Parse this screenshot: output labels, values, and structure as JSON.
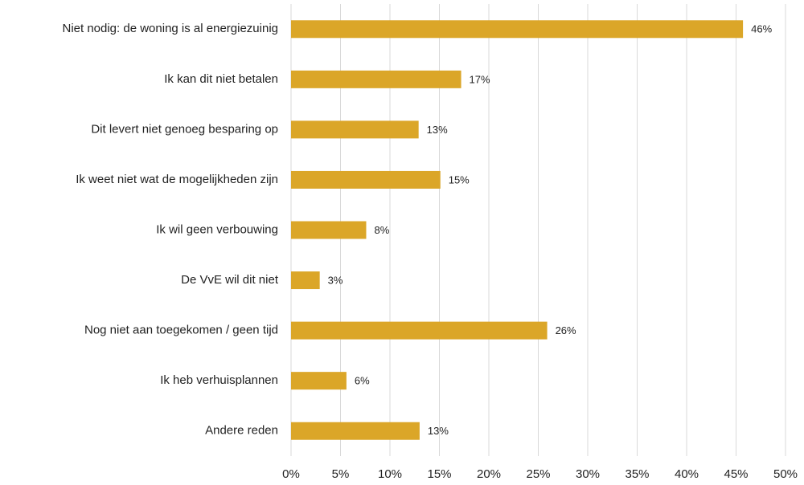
{
  "chart_data": {
    "type": "bar",
    "orientation": "horizontal",
    "categories": [
      "Niet nodig: de woning is al energiezuinig",
      "Ik kan dit niet betalen",
      "Dit levert niet genoeg besparing op",
      "Ik weet niet wat de mogelijkheden zijn",
      "Ik wil geen verbouwing",
      "De VvE wil dit niet",
      "Nog niet aan toegekomen / geen tijd",
      "Ik heb verhuisplannen",
      "Andere reden"
    ],
    "values": [
      45.7,
      17.2,
      12.9,
      15.1,
      7.6,
      2.9,
      25.9,
      5.6,
      13.0
    ],
    "value_labels": [
      "46%",
      "17%",
      "13%",
      "15%",
      "8%",
      "3%",
      "26%",
      "6%",
      "13%"
    ],
    "color": "#dba628",
    "xlim": [
      0,
      50
    ],
    "xticks": [
      {
        "value": 0,
        "label": "0%"
      },
      {
        "value": 5,
        "label": "5%"
      },
      {
        "value": 10,
        "label": "10%"
      },
      {
        "value": 15,
        "label": "15%"
      },
      {
        "value": 20,
        "label": "20%"
      },
      {
        "value": 25,
        "label": "25%"
      },
      {
        "value": 30,
        "label": "30%"
      },
      {
        "value": 35,
        "label": "35%"
      },
      {
        "value": 40,
        "label": "40%"
      },
      {
        "value": 45,
        "label": "45%"
      },
      {
        "value": 50,
        "label": "50%"
      }
    ],
    "grid": true
  }
}
